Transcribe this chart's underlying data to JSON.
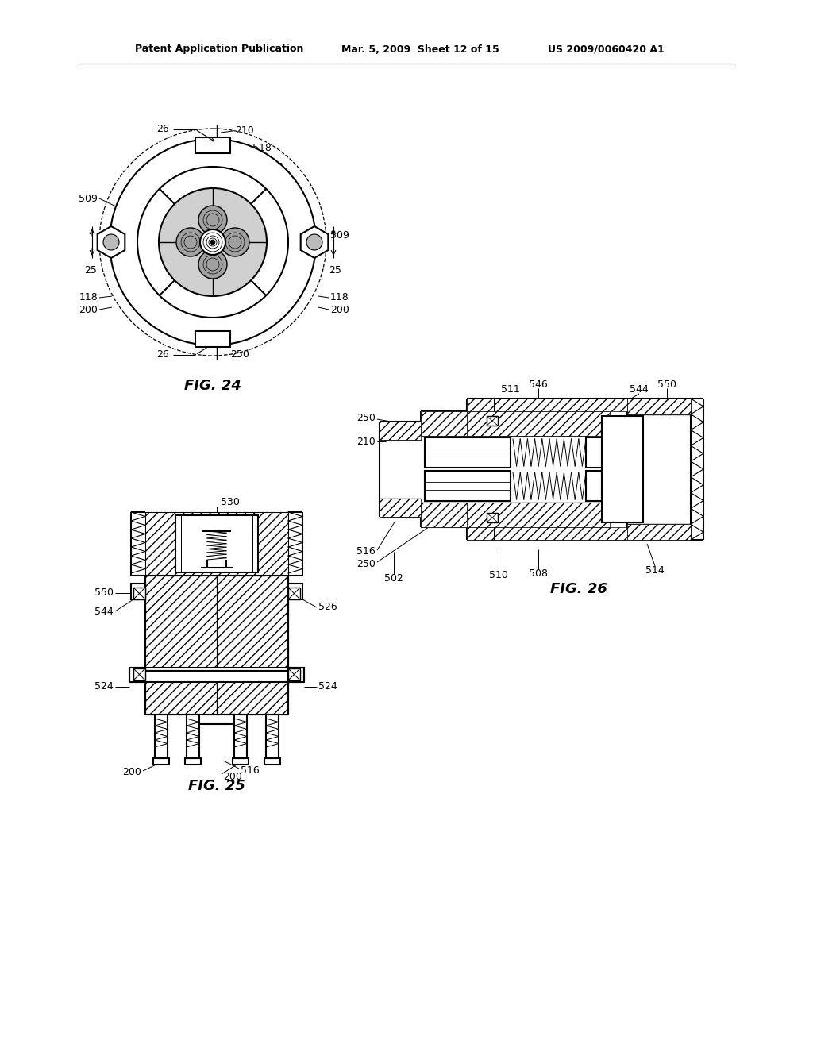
{
  "background_color": "#ffffff",
  "header_left": "Patent Application Publication",
  "header_center": "Mar. 5, 2009  Sheet 12 of 15",
  "header_right": "US 2009/0060420 A1",
  "fig24_caption": "FIG. 24",
  "fig25_caption": "FIG. 25",
  "fig26_caption": "FIG. 26",
  "line_color": "#000000",
  "text_color": "#000000"
}
